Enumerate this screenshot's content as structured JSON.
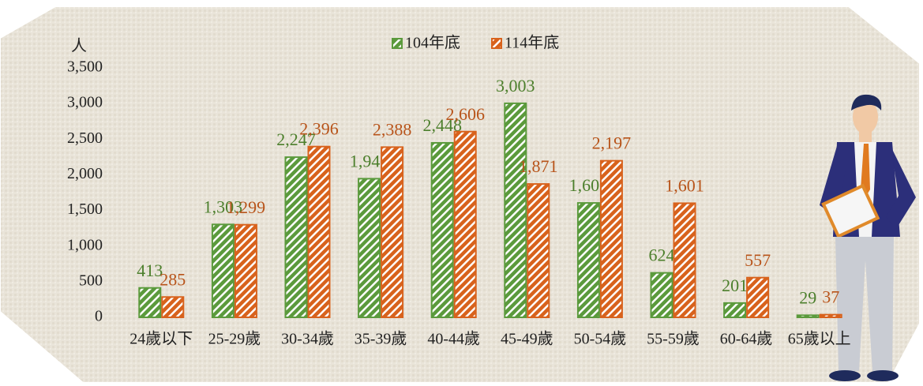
{
  "chart_data": {
    "type": "bar",
    "y_label": "人",
    "categories": [
      "24歲以下",
      "25-29歲",
      "30-34歲",
      "35-39歲",
      "40-44歲",
      "45-49歲",
      "50-54歲",
      "55-59歲",
      "60-64歲",
      "65歲以上"
    ],
    "series": [
      {
        "name": "104年底",
        "color": "#5b9a3c",
        "label_color": "#4c7f2c",
        "values": [
          413,
          1303,
          2247,
          1945,
          2448,
          3003,
          1605,
          624,
          201,
          29
        ],
        "value_labels": [
          "413",
          "1,303",
          "2,247",
          "1,945",
          "2,448",
          "3,003",
          "1,605",
          "624",
          "201",
          "29"
        ]
      },
      {
        "name": "114年底",
        "color": "#d8621c",
        "label_color": "#b8541a",
        "values": [
          285,
          1299,
          2396,
          2388,
          2606,
          1871,
          2197,
          1601,
          557,
          37
        ],
        "value_labels": [
          "285",
          "1,299",
          "2,396",
          "2,388",
          "2,606",
          "1,871",
          "2,197",
          "1,601",
          "557",
          "37"
        ]
      }
    ],
    "ylim": [
      0,
      3500
    ],
    "yticks": [
      0,
      500,
      {
        "value": 1000,
        "label": "1,000"
      },
      {
        "value": 1500,
        "label": "1,500"
      },
      {
        "value": 2000,
        "label": "2,000"
      },
      {
        "value": 2500,
        "label": "2,500"
      },
      {
        "value": 3000,
        "label": "3,000"
      },
      {
        "value": 3500,
        "label": "3,500"
      }
    ],
    "grid": false,
    "legend": "top"
  }
}
